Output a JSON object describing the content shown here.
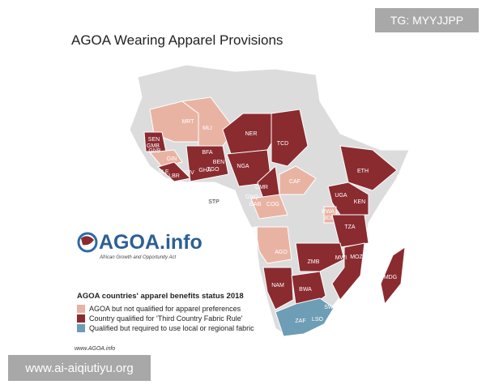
{
  "watermark_top": "TG: MYYJJPP",
  "title": "AGOA Wearing Apparel Provisions",
  "logo": {
    "name": "AGOA.info",
    "tagline": "African Growth and Opportunity Act"
  },
  "legend": {
    "title": "AGOA countries' apparel benefits status 2018",
    "items": [
      {
        "label": "AGOA but not qualified for apparel preferences",
        "color": "#e9b3a3"
      },
      {
        "label": "Country qualified for 'Third Country Fabric Rule'",
        "color": "#8a2b30"
      },
      {
        "label": "Qualified but required to use local or regional fabric",
        "color": "#6e9db6"
      }
    ]
  },
  "countries": [
    "MRT",
    "MLI",
    "SEN",
    "GMB",
    "GNB",
    "GIN",
    "SLE",
    "LBR",
    "CIV",
    "BFA",
    "GHA",
    "TGO",
    "BEN",
    "NER",
    "NGA",
    "TCD",
    "CMR",
    "CAF",
    "GNQ",
    "GAB",
    "COG",
    "STP",
    "ETH",
    "UGA",
    "KEN",
    "RWA",
    "BDI",
    "TZA",
    "AGO",
    "ZMB",
    "MWI",
    "MOZ",
    "MDG",
    "NAM",
    "BWA",
    "SWZ",
    "ZAF",
    "LSO"
  ],
  "source": "www.AGOA.info",
  "watermark_bottom": "www.ai-aiqiutiyu.org"
}
